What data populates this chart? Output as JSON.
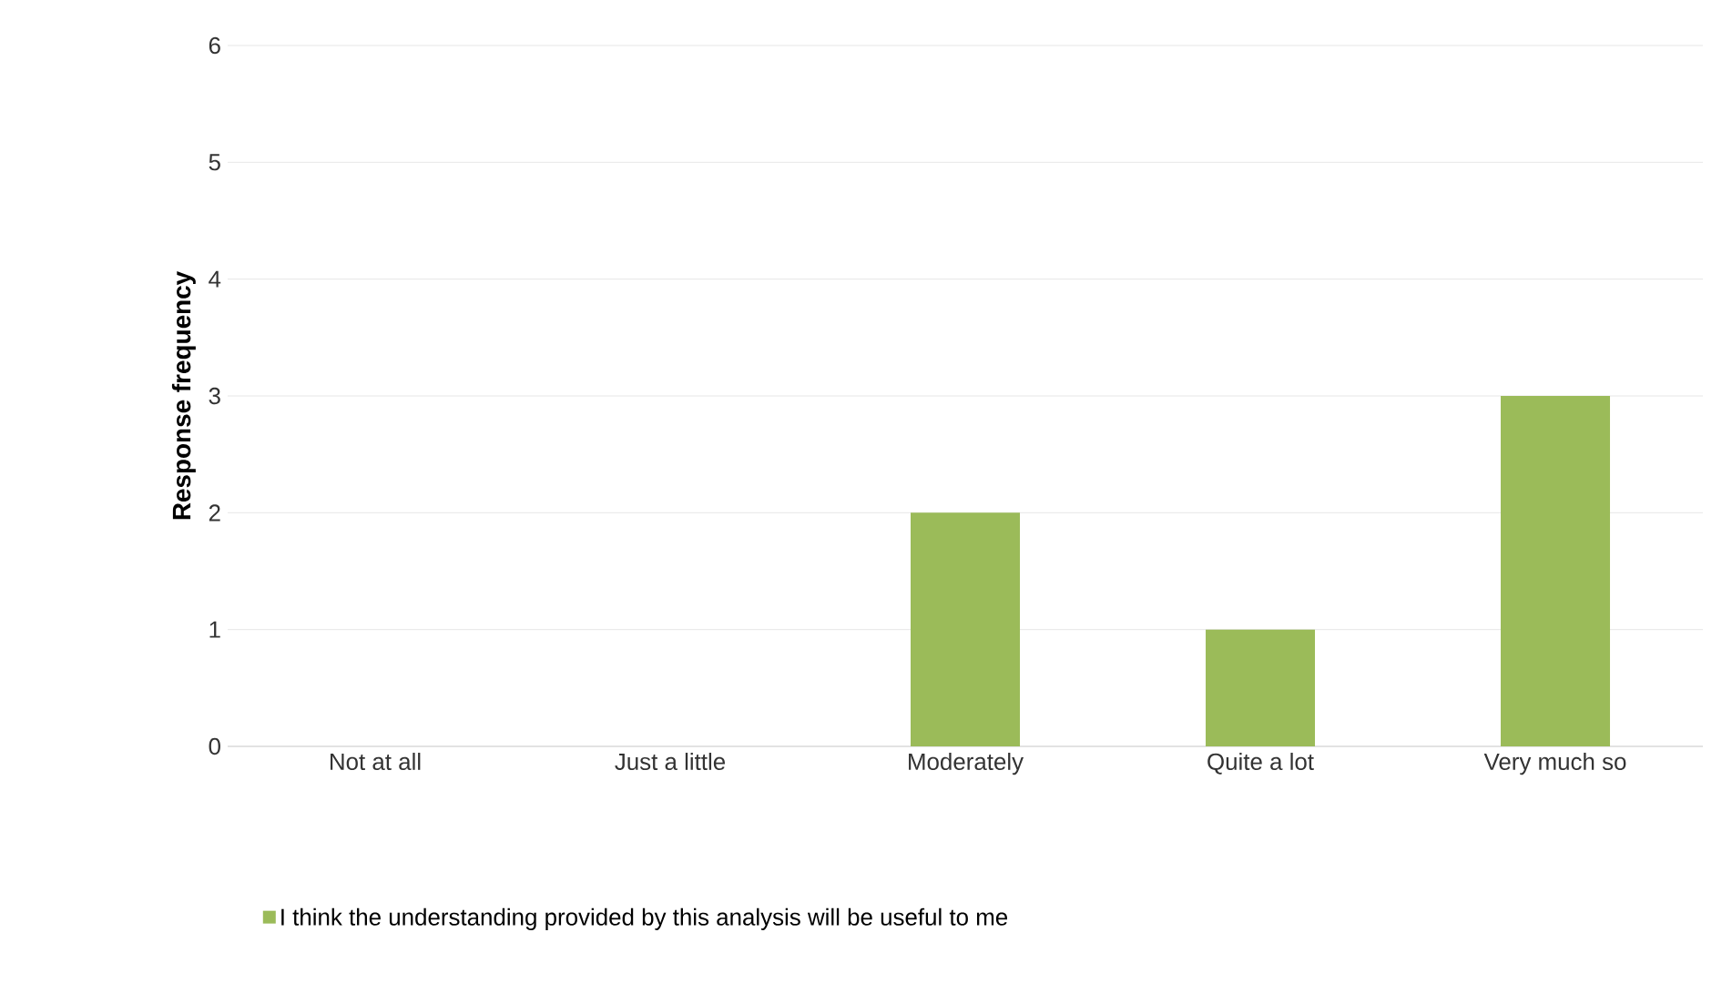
{
  "chart_data": {
    "type": "bar",
    "ylabel": "Response frequency",
    "categories": [
      "Not at all",
      "Just a little",
      "Moderately",
      "Quite a lot",
      "Very much so"
    ],
    "series": [
      {
        "name": "I think the understanding provided by this analysis will be useful to me",
        "color": "#9bbb59",
        "values": [
          0,
          0,
          2,
          1,
          3
        ]
      }
    ],
    "ylim": [
      0,
      6
    ],
    "yticks": [
      0,
      1,
      2,
      3,
      4,
      5,
      6
    ],
    "grid": "y",
    "legend": "bottom"
  }
}
